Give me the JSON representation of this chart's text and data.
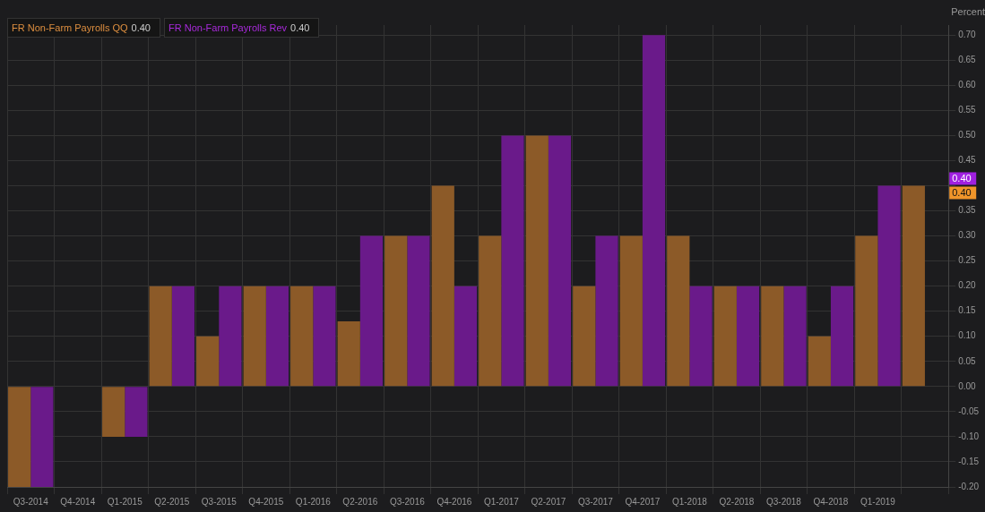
{
  "chart_data": {
    "type": "bar",
    "ylabel": "Percent",
    "categories": [
      "Q3-2014",
      "Q4-2014",
      "Q1-2015",
      "Q2-2015",
      "Q3-2015",
      "Q4-2015",
      "Q1-2016",
      "Q2-2016",
      "Q3-2016",
      "Q4-2016",
      "Q1-2017",
      "Q2-2017",
      "Q3-2017",
      "Q4-2017",
      "Q1-2018",
      "Q2-2018",
      "Q3-2018",
      "Q4-2018",
      "Q1-2019",
      null
    ],
    "series": [
      {
        "name": "FR Non-Farm Payrolls QQ",
        "color": "#8c5a28",
        "values": [
          -0.2,
          null,
          -0.1,
          0.2,
          0.1,
          0.2,
          0.2,
          0.13,
          0.3,
          0.4,
          0.3,
          0.5,
          0.2,
          0.3,
          0.3,
          0.2,
          0.2,
          0.1,
          0.3,
          0.4
        ]
      },
      {
        "name": "FR Non-Farm Payrolls Rev",
        "color": "#6a1a8a",
        "values": [
          -0.2,
          null,
          -0.1,
          0.2,
          0.2,
          0.2,
          0.2,
          0.3,
          0.3,
          0.2,
          0.5,
          0.5,
          0.3,
          0.7,
          0.2,
          0.2,
          0.2,
          0.2,
          0.4,
          null
        ]
      }
    ],
    "ylim": [
      -0.2,
      0.72
    ],
    "yticks": [
      {
        "value": -0.2,
        "label": "-0.20"
      },
      {
        "value": -0.15,
        "label": "-0.15"
      },
      {
        "value": -0.1,
        "label": "-0.10"
      },
      {
        "value": -0.05,
        "label": "-0.05"
      },
      {
        "value": 0,
        "label": "0.00"
      },
      {
        "value": 0.05,
        "label": "0.05"
      },
      {
        "value": 0.1,
        "label": "0.10"
      },
      {
        "value": 0.15,
        "label": "0.15"
      },
      {
        "value": 0.2,
        "label": "0.20"
      },
      {
        "value": 0.25,
        "label": "0.25"
      },
      {
        "value": 0.3,
        "label": "0.30"
      },
      {
        "value": 0.35,
        "label": "0.35"
      },
      {
        "value": 0.4,
        "label": null
      },
      {
        "value": 0.45,
        "label": "0.45"
      },
      {
        "value": 0.5,
        "label": "0.50"
      },
      {
        "value": 0.55,
        "label": "0.55"
      },
      {
        "value": 0.6,
        "label": "0.60"
      },
      {
        "value": 0.65,
        "label": "0.65"
      },
      {
        "value": 0.7,
        "label": "0.70"
      }
    ],
    "annotations": [
      "0.40",
      "0.40"
    ],
    "grid": true,
    "legend": "top left"
  }
}
